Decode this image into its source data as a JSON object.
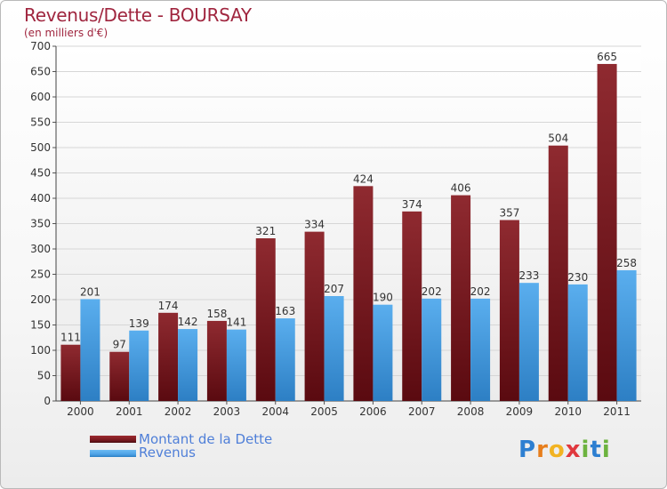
{
  "title": "Revenus/Dette - BOURSAY",
  "subtitle": "(en milliers d'€)",
  "colors": {
    "dette": "#7a1a1f",
    "revenus": "#4da3e6",
    "title": "#a0263f",
    "legend_text": "#4f7fd8"
  },
  "legend": {
    "dette_label": "Montant de la Dette",
    "revenus_label": "Revenus"
  },
  "logo_text": "Proxiti",
  "chart_data": {
    "type": "bar",
    "categories": [
      "2000",
      "2001",
      "2002",
      "2003",
      "2004",
      "2005",
      "2006",
      "2007",
      "2008",
      "2009",
      "2010",
      "2011"
    ],
    "series": [
      {
        "name": "Montant de la Dette",
        "values": [
          111,
          97,
          174,
          158,
          321,
          334,
          424,
          374,
          406,
          357,
          504,
          665
        ]
      },
      {
        "name": "Revenus",
        "values": [
          201,
          139,
          142,
          141,
          163,
          207,
          190,
          202,
          202,
          233,
          230,
          258
        ]
      }
    ],
    "ylim": [
      0,
      700
    ],
    "yticks": [
      0,
      50,
      100,
      150,
      200,
      250,
      300,
      350,
      400,
      450,
      500,
      550,
      600,
      650,
      700
    ],
    "grid": true,
    "legend_position": "bottom-left"
  }
}
